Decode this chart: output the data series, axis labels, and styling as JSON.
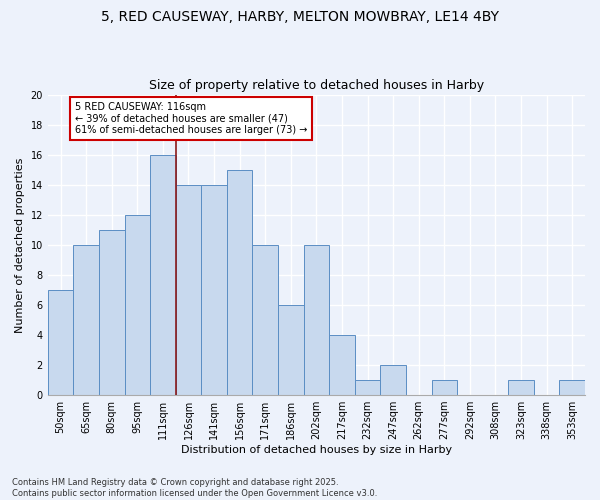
{
  "title_line1": "5, RED CAUSEWAY, HARBY, MELTON MOWBRAY, LE14 4BY",
  "title_line2": "Size of property relative to detached houses in Harby",
  "xlabel": "Distribution of detached houses by size in Harby",
  "ylabel": "Number of detached properties",
  "categories": [
    "50sqm",
    "65sqm",
    "80sqm",
    "95sqm",
    "111sqm",
    "126sqm",
    "141sqm",
    "156sqm",
    "171sqm",
    "186sqm",
    "202sqm",
    "217sqm",
    "232sqm",
    "247sqm",
    "262sqm",
    "277sqm",
    "292sqm",
    "308sqm",
    "323sqm",
    "338sqm",
    "353sqm"
  ],
  "values": [
    7,
    10,
    11,
    12,
    16,
    14,
    14,
    15,
    10,
    6,
    10,
    4,
    1,
    2,
    0,
    1,
    0,
    0,
    1,
    0,
    1
  ],
  "bar_color": "#c8d9ee",
  "bar_edge_color": "#5b8ec4",
  "vline_x": 4.5,
  "vline_color": "#8b1a1a",
  "annotation_text": "5 RED CAUSEWAY: 116sqm\n← 39% of detached houses are smaller (47)\n61% of semi-detached houses are larger (73) →",
  "annotation_box_color": "white",
  "annotation_box_edge": "#cc0000",
  "ylim": [
    0,
    20
  ],
  "yticks": [
    0,
    2,
    4,
    6,
    8,
    10,
    12,
    14,
    16,
    18,
    20
  ],
  "footnote": "Contains HM Land Registry data © Crown copyright and database right 2025.\nContains public sector information licensed under the Open Government Licence v3.0.",
  "bg_color": "#edf2fb",
  "grid_color": "#ffffff",
  "title_fontsize": 10,
  "subtitle_fontsize": 9,
  "axis_label_fontsize": 8,
  "tick_fontsize": 7,
  "annot_fontsize": 7,
  "footnote_fontsize": 6
}
